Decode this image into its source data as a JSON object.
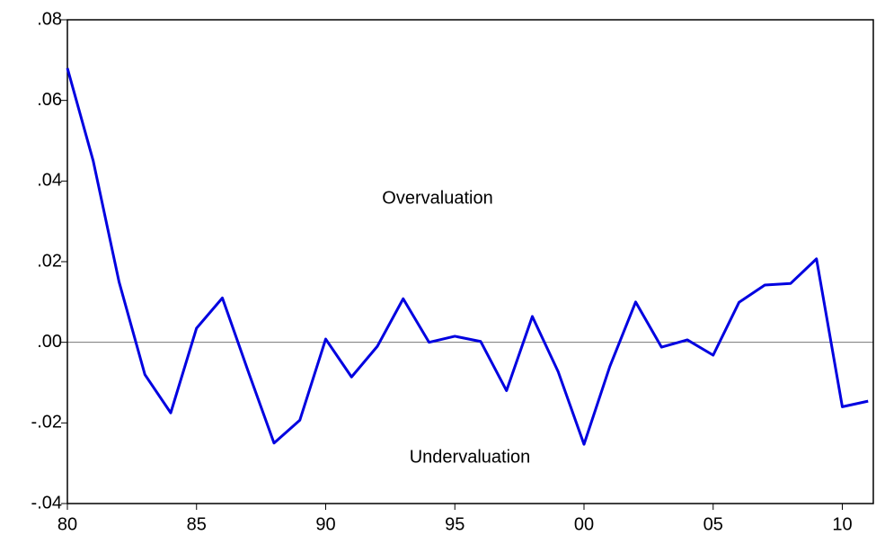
{
  "chart_data": {
    "type": "line",
    "x": [
      1980,
      1981,
      1982,
      1983,
      1984,
      1985,
      1986,
      1987,
      1988,
      1989,
      1990,
      1991,
      1992,
      1993,
      1994,
      1995,
      1996,
      1997,
      1998,
      1999,
      2000,
      2001,
      2002,
      2003,
      2004,
      2005,
      2006,
      2007,
      2008,
      2009,
      2010,
      2011
    ],
    "series": [
      {
        "color": "#0000e0",
        "values": [
          0.068,
          0.045,
          0.015,
          -0.008,
          -0.0175,
          0.0035,
          0.011,
          -0.0072,
          -0.025,
          -0.0193,
          0.0008,
          -0.0086,
          -0.001,
          0.0108,
          0,
          0.0015,
          0.0002,
          -0.012,
          0.0064,
          -0.0073,
          -0.0253,
          -0.006,
          0.01,
          -0.0012,
          0.0006,
          -0.0032,
          0.0099,
          0.0142,
          0.0146,
          0.0207,
          -0.016,
          -0.0146
        ]
      }
    ],
    "xlim": [
      1980,
      2011.2
    ],
    "xticks": [
      {
        "value": 1980,
        "label": "80"
      },
      {
        "value": 1985,
        "label": "85"
      },
      {
        "value": 1990,
        "label": "90"
      },
      {
        "value": 1995,
        "label": "95"
      },
      {
        "value": 2000,
        "label": "00"
      },
      {
        "value": 2005,
        "label": "05"
      },
      {
        "value": 2010,
        "label": "10"
      }
    ],
    "ylim": [
      -0.04,
      0.08
    ],
    "yticks": [
      {
        "value": -0.04,
        "label": "-.04"
      },
      {
        "value": -0.02,
        "label": "-.02"
      },
      {
        "value": 0,
        "label": ".00"
      },
      {
        "value": 0.02,
        "label": ".02"
      },
      {
        "value": 0.04,
        "label": ".04"
      },
      {
        "value": 0.06,
        "label": ".06"
      },
      {
        "value": 0.08,
        "label": ".08"
      }
    ],
    "hline": 0,
    "annotations": [
      "Overvaluation",
      "Undervaluation"
    ]
  }
}
